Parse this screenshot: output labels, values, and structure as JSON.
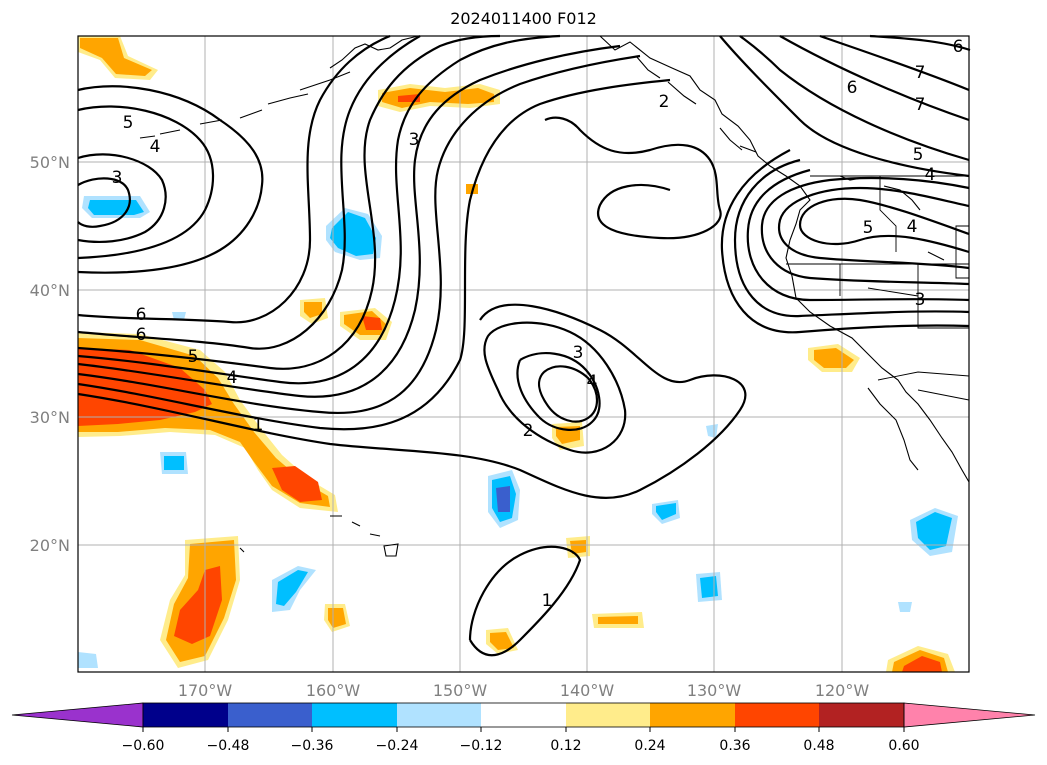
{
  "title": "2024011400 F012",
  "map": {
    "lon_range": [
      -180,
      -110
    ],
    "lat_range": [
      10,
      60
    ],
    "lat_labels": [
      {
        "lat": 50,
        "text": "50°N"
      },
      {
        "lat": 40,
        "text": "40°N"
      },
      {
        "lat": 30,
        "text": "30°N"
      },
      {
        "lat": 20,
        "text": "20°N"
      }
    ],
    "lon_labels": [
      {
        "lon": -170,
        "text": "170°W"
      },
      {
        "lon": -160,
        "text": "160°W"
      },
      {
        "lon": -150,
        "text": "150°W"
      },
      {
        "lon": -140,
        "text": "140°W"
      },
      {
        "lon": -130,
        "text": "130°W"
      },
      {
        "lon": -120,
        "text": "120°W"
      }
    ],
    "contour_labels": [
      "5",
      "4",
      "3",
      "6",
      "6",
      "5",
      "4",
      "1",
      "3",
      "3",
      "4",
      "2",
      "2",
      "1",
      "6",
      "7",
      "6",
      "7",
      "5",
      "4",
      "5",
      "4",
      "3"
    ]
  },
  "colorbar": {
    "colors": [
      "#9a32cd",
      "#00008b",
      "#3a5fcd",
      "#00bfff",
      "#b0e2ff",
      "#ffffff",
      "#ffec8b",
      "#ffa500",
      "#ff4500",
      "#b22222",
      "#ff82ab"
    ],
    "ticks": [
      "−0.60",
      "−0.48",
      "−0.36",
      "−0.24",
      "−0.12",
      "0.12",
      "0.24",
      "0.36",
      "0.48",
      "0.60"
    ]
  }
}
